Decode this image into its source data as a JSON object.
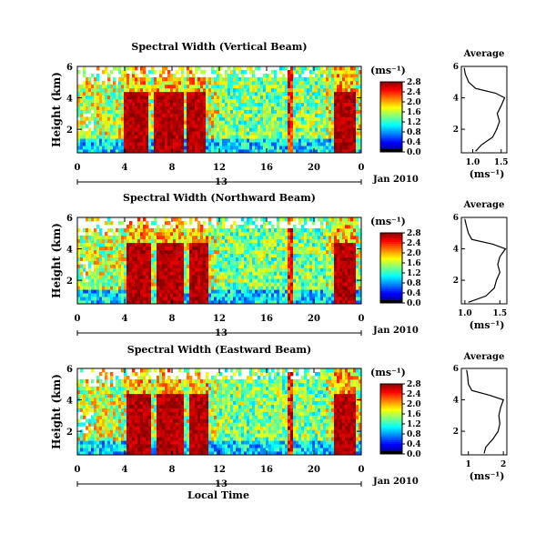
{
  "colorbar": {
    "unit": "(ms⁻¹)",
    "ticks": [
      "0.0",
      "0.4",
      "0.8",
      "1.2",
      "1.6",
      "2.0",
      "2.4",
      "2.8"
    ]
  },
  "colorbar_top_panel": {
    "ticks": [
      "0.0",
      "0.4",
      "0.8",
      "1.2",
      "1.6",
      "2.0",
      "2.4",
      "2.8"
    ]
  },
  "common": {
    "ylabel": "Height (km)",
    "yticks": [
      "6",
      "4",
      "2"
    ],
    "xticks": [
      "0",
      "4",
      "8",
      "12",
      "16",
      "20",
      "0"
    ],
    "date_day": "13",
    "date_label": "Jan 2010",
    "xlabel_bottom": "Local Time",
    "avg_title": "Average",
    "avg_xlabel": "(ms⁻¹)"
  },
  "chart_data": [
    {
      "type": "heatmap",
      "title": "Spectral Width (Vertical Beam)",
      "x_unit": "local time (h), 13 Jan 2010",
      "xlim": [
        0,
        24
      ],
      "ylim": [
        0.5,
        6
      ],
      "y_unit": "km",
      "color_range": [
        0.0,
        2.8
      ],
      "high_regions": [
        [
          4.0,
          6.0
        ],
        [
          6.5,
          9.0
        ],
        [
          9.3,
          10.8
        ],
        [
          21.8,
          23.5
        ]
      ],
      "avg_profile": {
        "xticks": [
          "1.0",
          "1.5"
        ],
        "xlim": [
          0.8,
          1.6
        ],
        "heights": [
          0.6,
          1.0,
          1.5,
          2.0,
          2.5,
          3.0,
          3.5,
          4.0,
          4.3,
          4.6,
          5.0,
          5.5,
          5.9
        ],
        "values": [
          1.05,
          1.15,
          1.35,
          1.42,
          1.47,
          1.43,
          1.5,
          1.56,
          1.4,
          1.05,
          0.93,
          0.87,
          0.85
        ]
      }
    },
    {
      "type": "heatmap",
      "title": "Spectral Width (Northward Beam)",
      "x_unit": "local time (h), 13 Jan 2010",
      "xlim": [
        0,
        24
      ],
      "ylim": [
        0.5,
        6
      ],
      "y_unit": "km",
      "color_range": [
        0.0,
        2.8
      ],
      "high_regions": [
        [
          4.1,
          6.2
        ],
        [
          6.6,
          9.0
        ],
        [
          9.4,
          11.0
        ],
        [
          21.8,
          23.6
        ]
      ],
      "avg_profile": {
        "xticks": [
          "1.0",
          "1.5"
        ],
        "xlim": [
          0.95,
          1.6
        ],
        "heights": [
          0.6,
          1.0,
          1.5,
          2.0,
          2.5,
          3.0,
          3.5,
          4.0,
          4.3,
          4.6,
          5.0,
          5.5,
          5.9
        ],
        "values": [
          1.05,
          1.3,
          1.42,
          1.45,
          1.5,
          1.47,
          1.5,
          1.58,
          1.4,
          1.1,
          1.05,
          1.02,
          1.0
        ]
      }
    },
    {
      "type": "heatmap",
      "title": "Spectral Width (Eastward Beam)",
      "x_unit": "local time (h), 13 Jan 2010",
      "xlim": [
        0,
        24
      ],
      "ylim": [
        0.5,
        6
      ],
      "y_unit": "km",
      "color_range": [
        0.0,
        2.8
      ],
      "high_regions": [
        [
          4.1,
          6.3
        ],
        [
          6.6,
          9.1
        ],
        [
          9.4,
          11.0
        ],
        [
          21.8,
          23.6
        ]
      ],
      "avg_profile": {
        "xticks": [
          "1",
          "2"
        ],
        "xlim": [
          0.8,
          2.1
        ],
        "heights": [
          0.6,
          1.0,
          1.5,
          2.0,
          2.5,
          3.0,
          3.5,
          4.0,
          4.3,
          4.6,
          5.0,
          5.5,
          5.9
        ],
        "values": [
          1.45,
          1.5,
          1.7,
          1.85,
          1.9,
          1.87,
          1.92,
          2.0,
          1.6,
          1.1,
          1.0,
          0.98,
          0.95
        ]
      }
    }
  ]
}
